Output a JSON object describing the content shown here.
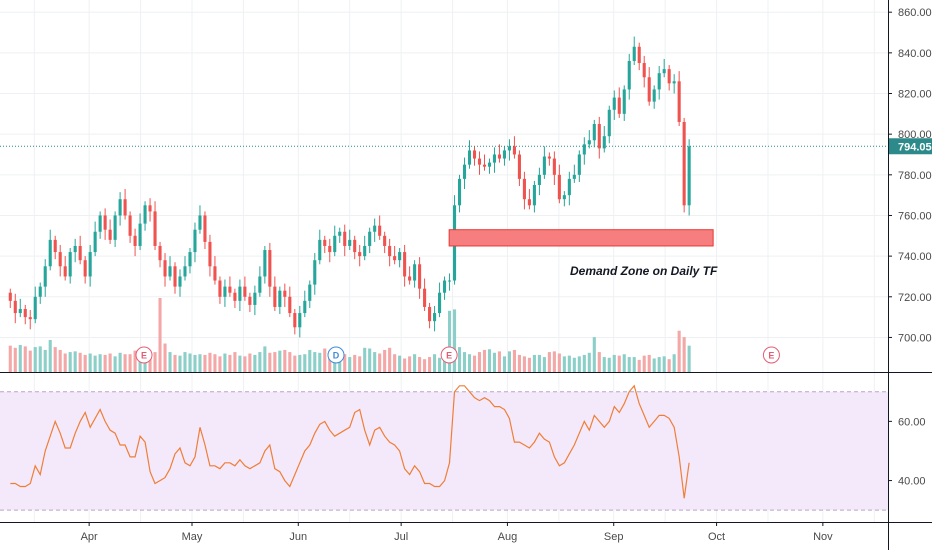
{
  "colors": {
    "up": "#26a69a",
    "down": "#ef5350",
    "vol_up": "#8ccfc8",
    "vol_down": "#f3a7a6",
    "grid": "#eef0f3",
    "axis": "#131722",
    "last_price_line": "#2c8a8a",
    "zone_fill": "#f77e7e",
    "zone_stroke": "#e53935",
    "rsi_line": "#f07e37",
    "rsi_band": "#f3e9fb",
    "rsi_band_border": "#b6a6c6",
    "event_earnings": "#e55d75",
    "event_dividend": "#3d8bd9"
  },
  "price_axis": {
    "ticks": [
      "860.00",
      "840.00",
      "820.00",
      "800.00",
      "780.00",
      "760.00",
      "740.00",
      "720.00",
      "700.00"
    ],
    "last_price": "794.05"
  },
  "rsi_axis": {
    "ticks": [
      "60.00",
      "40.00"
    ]
  },
  "time_axis": {
    "months": [
      "Apr",
      "May",
      "Jun",
      "Jul",
      "Aug",
      "Sep",
      "Oct",
      "Nov"
    ]
  },
  "annotation": {
    "text": "Demand Zone on Daily TF"
  },
  "events": [
    {
      "label": "E",
      "kind": "earnings"
    },
    {
      "label": "D",
      "kind": "dividend"
    },
    {
      "label": "E",
      "kind": "earnings"
    },
    {
      "label": "E",
      "kind": "earnings"
    }
  ],
  "chart_data": [
    {
      "type": "candlestick",
      "panel": "price",
      "ylim": [
        683,
        866
      ],
      "xlim": [
        "2020-03-06",
        "2020-11-20"
      ],
      "last_price": 794.05,
      "demand_zone": {
        "x_start": "2020-07-15",
        "x_end": "2020-09-30",
        "y_low": 745,
        "y_high": 753
      },
      "events": [
        {
          "date": "2020-04-17",
          "label": "E"
        },
        {
          "date": "2020-06-12",
          "label": "D"
        },
        {
          "date": "2020-07-15",
          "label": "E"
        },
        {
          "date": "2020-10-17",
          "label": "E"
        }
      ],
      "close": [
        718,
        712,
        714,
        710,
        709,
        720,
        725,
        735,
        748,
        742,
        735,
        730,
        742,
        745,
        738,
        730,
        742,
        752,
        760,
        753,
        748,
        760,
        768,
        760,
        750,
        745,
        756,
        765,
        762,
        745,
        738,
        730,
        735,
        725,
        730,
        735,
        742,
        753,
        760,
        747,
        735,
        728,
        720,
        725,
        722,
        718,
        725,
        720,
        716,
        722,
        730,
        743,
        725,
        715,
        723,
        720,
        712,
        705,
        712,
        718,
        726,
        738,
        748,
        745,
        742,
        750,
        752,
        745,
        748,
        742,
        740,
        745,
        752,
        755,
        750,
        745,
        740,
        738,
        742,
        730,
        728,
        736,
        724,
        715,
        708,
        712,
        722,
        728,
        728,
        765,
        778,
        785,
        792,
        788,
        785,
        784,
        786,
        790,
        788,
        792,
        794,
        790,
        778,
        768,
        765,
        775,
        780,
        789,
        788,
        780,
        768,
        770,
        778,
        780,
        790,
        795,
        797,
        805,
        793,
        799,
        812,
        818,
        810,
        822,
        836,
        843,
        835,
        828,
        816,
        822,
        830,
        832,
        825,
        826,
        806,
        765,
        794
      ]
    },
    {
      "type": "bar",
      "panel": "volume",
      "values": [
        37,
        34,
        38,
        36,
        30,
        35,
        36,
        31,
        45,
        35,
        31,
        26,
        28,
        29,
        27,
        24,
        26,
        23,
        25,
        24,
        26,
        22,
        27,
        25,
        25,
        30,
        27,
        25,
        26,
        28,
        104,
        40,
        28,
        24,
        23,
        28,
        26,
        24,
        25,
        24,
        27,
        25,
        22,
        26,
        24,
        28,
        23,
        22,
        26,
        24,
        28,
        36,
        27,
        28,
        30,
        31,
        28,
        23,
        24,
        25,
        31,
        28,
        27,
        33,
        29,
        29,
        27,
        25,
        21,
        24,
        22,
        34,
        33,
        28,
        26,
        31,
        34,
        25,
        23,
        19,
        22,
        25,
        21,
        18,
        21,
        25,
        20,
        18,
        86,
        88,
        35,
        28,
        25,
        23,
        28,
        31,
        32,
        27,
        29,
        22,
        29,
        31,
        24,
        22,
        20,
        24,
        24,
        21,
        28,
        29,
        26,
        22,
        23,
        20,
        22,
        24,
        27,
        49,
        28,
        21,
        20,
        24,
        23,
        25,
        21,
        21,
        17,
        23,
        24,
        19,
        21,
        22,
        18,
        25,
        58,
        49,
        37
      ]
    },
    {
      "type": "line",
      "panel": "rsi",
      "ylim": [
        26,
        76
      ],
      "band": [
        30,
        70
      ],
      "values": [
        39,
        39,
        38,
        38,
        39,
        45,
        42,
        50,
        55,
        60,
        56,
        51,
        51,
        56,
        60,
        63,
        58,
        61,
        64,
        60,
        57,
        56,
        52,
        52,
        48,
        48,
        55,
        53,
        43,
        39,
        40,
        41,
        44,
        49,
        51,
        46,
        45,
        48,
        58,
        52,
        45,
        45,
        44,
        46,
        46,
        45,
        47,
        45,
        44,
        45,
        46,
        50,
        52,
        44,
        43,
        40,
        38,
        42,
        46,
        50,
        52,
        56,
        59,
        60,
        57,
        55,
        56,
        57,
        58,
        63,
        64,
        57,
        52,
        57,
        58,
        55,
        53,
        52,
        50,
        44,
        42,
        45,
        43,
        39,
        39,
        38,
        38,
        40,
        46,
        70,
        72,
        72,
        70,
        68,
        67,
        68,
        67,
        65,
        65,
        64,
        61,
        53,
        53,
        52,
        51,
        53,
        56,
        54,
        53,
        48,
        45,
        46,
        49,
        52,
        56,
        60,
        57,
        62,
        60,
        58,
        60,
        65,
        63,
        66,
        70,
        72,
        66,
        62,
        58,
        60,
        62,
        62,
        61,
        58,
        48,
        34,
        46
      ]
    }
  ]
}
